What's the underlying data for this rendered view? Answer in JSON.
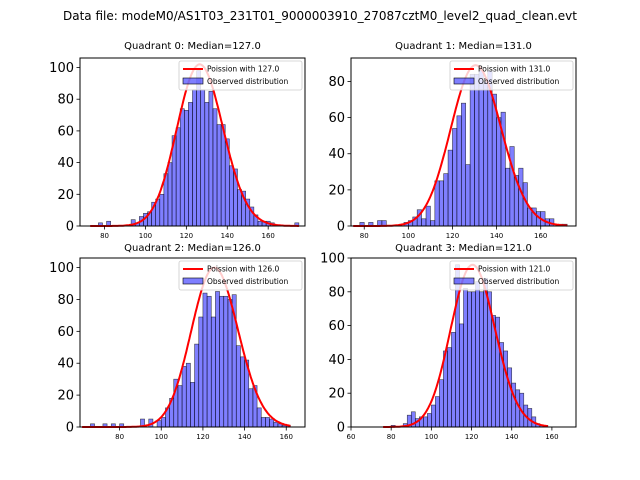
{
  "figure": {
    "suptitle": "Data file: modeM0/AS1T03_231T01_9000003910_27087cztM0_level2_quad_clean.evt"
  },
  "colors": {
    "bar_fill": "#0000ff",
    "bar_fill_opacity": 0.5,
    "bar_edge": "#000000",
    "poisson_line": "#ff0000",
    "axis": "#000000"
  },
  "chart_data": [
    {
      "type": "bar",
      "title": "Quadrant 0: Median=127.0",
      "xlabel": "",
      "ylabel": "",
      "xlim": [
        68,
        178
      ],
      "ylim": [
        0,
        106
      ],
      "xticks": [
        80,
        100,
        120,
        140,
        160
      ],
      "yticks": [
        0,
        20,
        40,
        60,
        80,
        100
      ],
      "bin_width": 2,
      "legend": {
        "placement": "top-right",
        "entries": [
          "Poission with 127.0",
          "Observed distribution"
        ]
      },
      "poisson_mean": 127.0,
      "poisson_peak": 102,
      "bins": [
        [
          77,
          2
        ],
        [
          81,
          3
        ],
        [
          93,
          4
        ],
        [
          95,
          2
        ],
        [
          97,
          6
        ],
        [
          99,
          8
        ],
        [
          101,
          9
        ],
        [
          103,
          15
        ],
        [
          105,
          17
        ],
        [
          107,
          20
        ],
        [
          109,
          33
        ],
        [
          111,
          40
        ],
        [
          113,
          57
        ],
        [
          115,
          62
        ],
        [
          117,
          74
        ],
        [
          119,
          73
        ],
        [
          121,
          78
        ],
        [
          123,
          86
        ],
        [
          125,
          98
        ],
        [
          127,
          86
        ],
        [
          129,
          78
        ],
        [
          131,
          85
        ],
        [
          133,
          74
        ],
        [
          135,
          64
        ],
        [
          137,
          64
        ],
        [
          139,
          55
        ],
        [
          141,
          38
        ],
        [
          143,
          36
        ],
        [
          145,
          23
        ],
        [
          147,
          22
        ],
        [
          149,
          17
        ],
        [
          151,
          12
        ],
        [
          153,
          7
        ],
        [
          155,
          3
        ],
        [
          157,
          3
        ],
        [
          159,
          3
        ],
        [
          161,
          2
        ],
        [
          173,
          2
        ]
      ]
    },
    {
      "type": "bar",
      "title": "Quadrant 1: Median=131.0",
      "xlabel": "",
      "ylabel": "",
      "xlim": [
        74,
        176
      ],
      "ylim": [
        0,
        93
      ],
      "xticks": [
        80,
        100,
        120,
        140,
        160
      ],
      "yticks": [
        0,
        20,
        40,
        60,
        80
      ],
      "bin_width": 2,
      "legend": {
        "placement": "top-right",
        "entries": [
          "Poission with 131.0",
          "Observed distribution"
        ]
      },
      "poisson_mean": 131.0,
      "poisson_peak": 89,
      "bins": [
        [
          78,
          2
        ],
        [
          82,
          2
        ],
        [
          86,
          3
        ],
        [
          88,
          3
        ],
        [
          98,
          2
        ],
        [
          100,
          3
        ],
        [
          102,
          5
        ],
        [
          104,
          9
        ],
        [
          106,
          4
        ],
        [
          108,
          11
        ],
        [
          110,
          3
        ],
        [
          112,
          25
        ],
        [
          114,
          25
        ],
        [
          116,
          29
        ],
        [
          118,
          42
        ],
        [
          120,
          54
        ],
        [
          122,
          61
        ],
        [
          124,
          68
        ],
        [
          126,
          34
        ],
        [
          128,
          84
        ],
        [
          130,
          84
        ],
        [
          132,
          86
        ],
        [
          134,
          80
        ],
        [
          136,
          86
        ],
        [
          138,
          73
        ],
        [
          140,
          60
        ],
        [
          142,
          63
        ],
        [
          144,
          32
        ],
        [
          146,
          44
        ],
        [
          148,
          28
        ],
        [
          150,
          32
        ],
        [
          152,
          24
        ],
        [
          154,
          10
        ],
        [
          156,
          10
        ],
        [
          158,
          8
        ],
        [
          160,
          8
        ],
        [
          162,
          4
        ],
        [
          164,
          4
        ],
        [
          168,
          1
        ],
        [
          170,
          1
        ]
      ]
    },
    {
      "type": "bar",
      "title": "Quadrant 2: Median=126.0",
      "xlabel": "",
      "ylabel": "",
      "xlim": [
        61,
        169
      ],
      "ylim": [
        0,
        106
      ],
      "xticks": [
        80,
        100,
        120,
        140,
        160
      ],
      "yticks": [
        0,
        20,
        40,
        60,
        80,
        100
      ],
      "bin_width": 2,
      "legend": {
        "placement": "top-right",
        "entries": [
          "Poission with 126.0",
          "Observed distribution"
        ]
      },
      "poisson_mean": 126.0,
      "poisson_peak": 100,
      "bins": [
        [
          66,
          2
        ],
        [
          72,
          2
        ],
        [
          76,
          2
        ],
        [
          80,
          2
        ],
        [
          90,
          5
        ],
        [
          94,
          5
        ],
        [
          98,
          4
        ],
        [
          100,
          6
        ],
        [
          102,
          12
        ],
        [
          104,
          18
        ],
        [
          106,
          30
        ],
        [
          108,
          26
        ],
        [
          110,
          38
        ],
        [
          112,
          40
        ],
        [
          114,
          28
        ],
        [
          116,
          52
        ],
        [
          118,
          69
        ],
        [
          120,
          84
        ],
        [
          122,
          82
        ],
        [
          124,
          69
        ],
        [
          126,
          85
        ],
        [
          128,
          82
        ],
        [
          130,
          82
        ],
        [
          132,
          80
        ],
        [
          134,
          83
        ],
        [
          136,
          51
        ],
        [
          138,
          44
        ],
        [
          140,
          42
        ],
        [
          142,
          24
        ],
        [
          144,
          26
        ],
        [
          146,
          12
        ],
        [
          148,
          6
        ],
        [
          150,
          6
        ],
        [
          152,
          5
        ],
        [
          154,
          3
        ],
        [
          156,
          2
        ],
        [
          158,
          1
        ],
        [
          160,
          1
        ]
      ]
    },
    {
      "type": "bar",
      "title": "Quadrant 3: Median=121.0",
      "xlabel": "",
      "ylabel": "",
      "xlim": [
        60,
        172
      ],
      "ylim": [
        0,
        100
      ],
      "xticks": [
        60,
        80,
        100,
        120,
        140,
        160
      ],
      "yticks": [
        0,
        20,
        40,
        60,
        80,
        100
      ],
      "bin_width": 2,
      "legend": {
        "placement": "top-right",
        "entries": [
          "Poission with 121.0",
          "Observed distribution"
        ]
      },
      "poisson_mean": 121.0,
      "poisson_peak": 96,
      "bins": [
        [
          80,
          1
        ],
        [
          86,
          2
        ],
        [
          88,
          7
        ],
        [
          90,
          9
        ],
        [
          92,
          5
        ],
        [
          94,
          6
        ],
        [
          96,
          6
        ],
        [
          98,
          8
        ],
        [
          100,
          13
        ],
        [
          102,
          18
        ],
        [
          104,
          28
        ],
        [
          106,
          45
        ],
        [
          108,
          47
        ],
        [
          110,
          56
        ],
        [
          112,
          96
        ],
        [
          114,
          61
        ],
        [
          116,
          82
        ],
        [
          118,
          80
        ],
        [
          120,
          80
        ],
        [
          122,
          86
        ],
        [
          124,
          80
        ],
        [
          126,
          88
        ],
        [
          128,
          80
        ],
        [
          130,
          66
        ],
        [
          132,
          65
        ],
        [
          134,
          50
        ],
        [
          136,
          45
        ],
        [
          138,
          35
        ],
        [
          140,
          26
        ],
        [
          142,
          22
        ],
        [
          144,
          20
        ],
        [
          146,
          13
        ],
        [
          148,
          11
        ],
        [
          150,
          6
        ],
        [
          152,
          2
        ],
        [
          154,
          1
        ],
        [
          156,
          1
        ]
      ]
    }
  ]
}
